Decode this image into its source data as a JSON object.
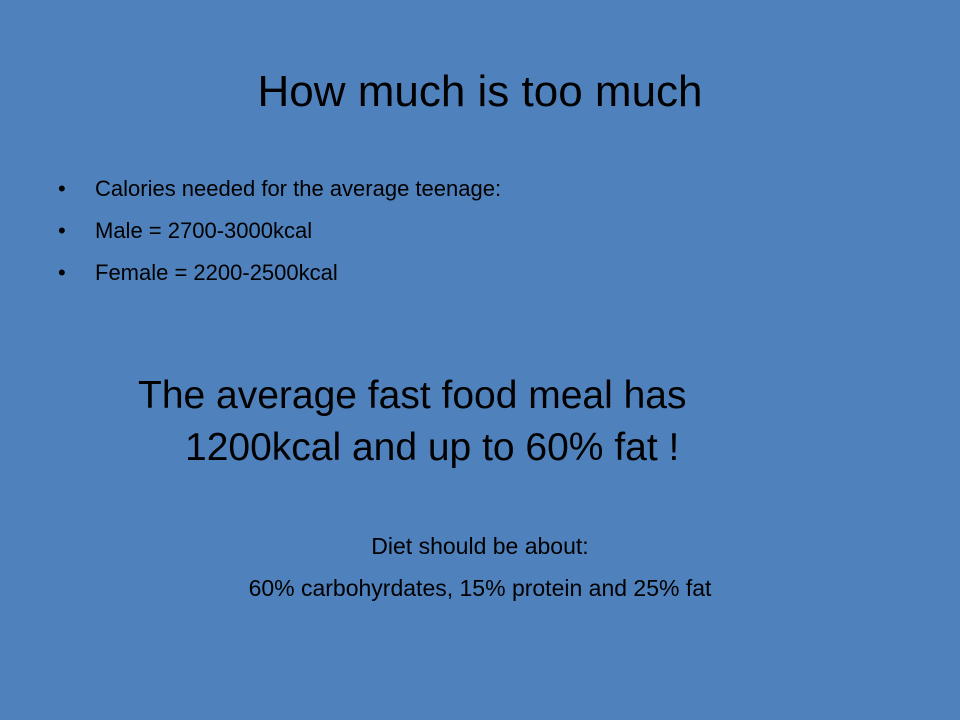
{
  "slide": {
    "title": "How much is too much",
    "bullets": [
      "Calories needed for the average teenage:",
      "Male = 2700-3000kcal",
      "Female = 2200-2500kcal"
    ],
    "highlight": [
      "The average fast food meal has",
      "1200kcal and up to 60% fat !"
    ],
    "note": [
      "Diet should be about:",
      "60% carbohyrdates, 15% protein and 25% fat"
    ]
  }
}
